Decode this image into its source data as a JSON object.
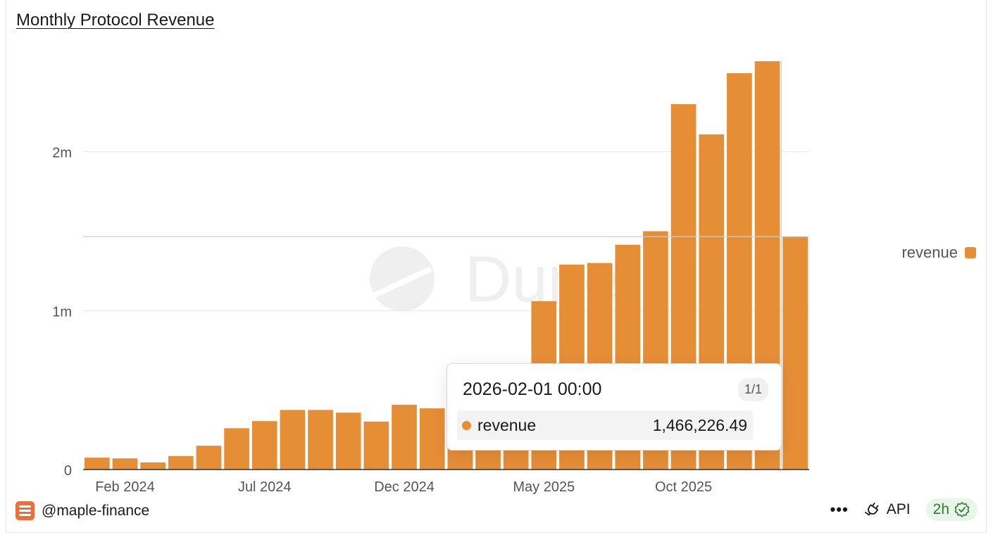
{
  "title": "Monthly Protocol Revenue",
  "watermark": "Dune",
  "legend": {
    "label": "revenue",
    "color": "#E68E36"
  },
  "tooltip": {
    "date": "2026-02-01 00:00",
    "page": "1/1",
    "series_name": "revenue",
    "value": "1,466,226.49"
  },
  "footer": {
    "owner": "@maple-finance",
    "more": "•••",
    "api": "API",
    "freshness": "2h"
  },
  "icons": {
    "owner": "maple-finance-logo-icon",
    "api": "plug-icon",
    "freshness": "verified-badge-icon"
  },
  "chart_data": {
    "type": "bar",
    "title": "Monthly Protocol Revenue",
    "color": "#E68E36",
    "grid": true,
    "legend_position": "right",
    "categories": [
      "2024-01",
      "2024-02",
      "2024-03",
      "2024-04",
      "2024-05",
      "2024-06",
      "2024-07",
      "2024-08",
      "2024-09",
      "2024-10",
      "2024-11",
      "2024-12",
      "2025-01",
      "2025-02",
      "2025-03",
      "2025-04",
      "2025-05",
      "2025-06",
      "2025-07",
      "2025-08",
      "2025-09",
      "2025-10",
      "2025-11",
      "2025-12",
      "2026-01",
      "2026-02"
    ],
    "values": [
      75000,
      70000,
      45000,
      85000,
      150000,
      260000,
      305000,
      375000,
      375000,
      358000,
      302000,
      408000,
      385000,
      385000,
      385000,
      385000,
      1060000,
      1290000,
      1300000,
      1415000,
      1500000,
      2300000,
      2110000,
      2495000,
      2570000,
      1466226.49
    ],
    "x_tick_labels": [
      "Feb 2024",
      "Jul 2024",
      "Dec 2024",
      "May 2025",
      "Oct 2025"
    ],
    "x_tick_categories": [
      "2024-02",
      "2024-07",
      "2024-12",
      "2025-05",
      "2025-10"
    ],
    "y_ticks": [
      0,
      1000000,
      2000000
    ],
    "y_tick_labels": [
      "0",
      "1m",
      "2m"
    ],
    "ylim": [
      0,
      2570000
    ],
    "highlighted_category": "2026-02",
    "series": [
      {
        "name": "revenue",
        "values": [
          75000,
          70000,
          45000,
          85000,
          150000,
          260000,
          305000,
          375000,
          375000,
          358000,
          302000,
          408000,
          385000,
          385000,
          385000,
          385000,
          1060000,
          1290000,
          1300000,
          1415000,
          1500000,
          2300000,
          2110000,
          2495000,
          2570000,
          1466226.49
        ]
      }
    ]
  }
}
